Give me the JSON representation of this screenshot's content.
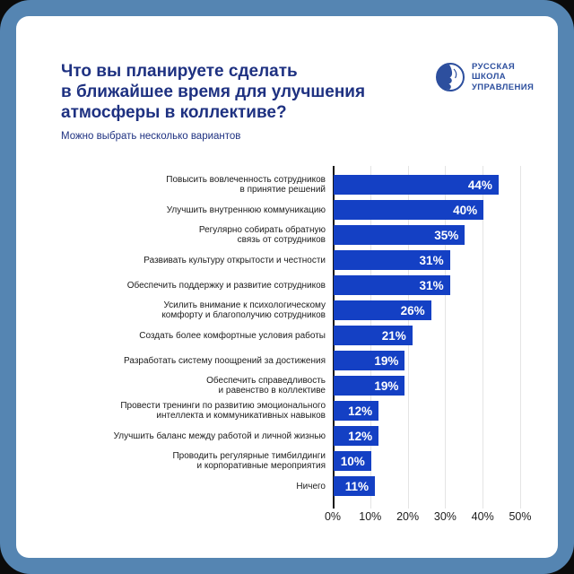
{
  "frame": {
    "outer_background": "#0b0b0b",
    "border_color": "#5585b2",
    "card_background": "#ffffff"
  },
  "header": {
    "title": "Что вы планируете сделать\nв ближайшее время для улучшения\nатмосферы в коллективе?",
    "subtitle": "Можно выбрать несколько вариантов",
    "title_color": "#1e3181"
  },
  "logo": {
    "name": "Русская Школа Управления",
    "text": "РУССКАЯ\nШКОЛА\nУПРАВЛЕНИЯ",
    "color": "#2d4f9e"
  },
  "chart_data": {
    "type": "bar",
    "orientation": "horizontal",
    "title": "Что вы планируете сделать в ближайшее время для улучшения атмосферы в коллективе?",
    "subtitle": "Можно выбрать несколько вариантов",
    "categories": [
      "Повысить вовлеченность сотрудников\nв принятие решений",
      "Улучшить внутреннюю коммуникацию",
      "Регулярно собирать обратную\nсвязь от сотрудников",
      "Развивать культуру открытости и честности",
      "Обеспечить поддержку и развитие сотрудников",
      "Усилить внимание к психологическому\nкомфорту и благополучию сотрудников",
      "Создать более комфортные условия работы",
      "Разработать систему поощрений за достижения",
      "Обеспечить справедливость\nи равенство в коллективе",
      "Провести тренинги по развитию эмоционального\nинтеллекта и коммуникативных навыков",
      "Улучшить баланс между работой и личной жизнью",
      "Проводить регулярные тимбилдинги\nи корпоративные мероприятия",
      "Ничего"
    ],
    "values": [
      44,
      40,
      35,
      31,
      31,
      26,
      21,
      19,
      19,
      12,
      12,
      10,
      11
    ],
    "value_labels": [
      "44%",
      "40%",
      "35%",
      "31%",
      "31%",
      "26%",
      "21%",
      "19%",
      "19%",
      "12%",
      "12%",
      "10%",
      "11%"
    ],
    "x_ticks": [
      "0%",
      "10%",
      "20%",
      "30%",
      "40%",
      "50%"
    ],
    "x_tick_values": [
      0,
      10,
      20,
      30,
      40,
      50
    ],
    "xlim": [
      0,
      50
    ],
    "grid": true,
    "bar_color": "#1440c4",
    "value_label_color": "#ffffff",
    "gridline_color": "#e4e4e4",
    "axis_color": "#161616"
  }
}
